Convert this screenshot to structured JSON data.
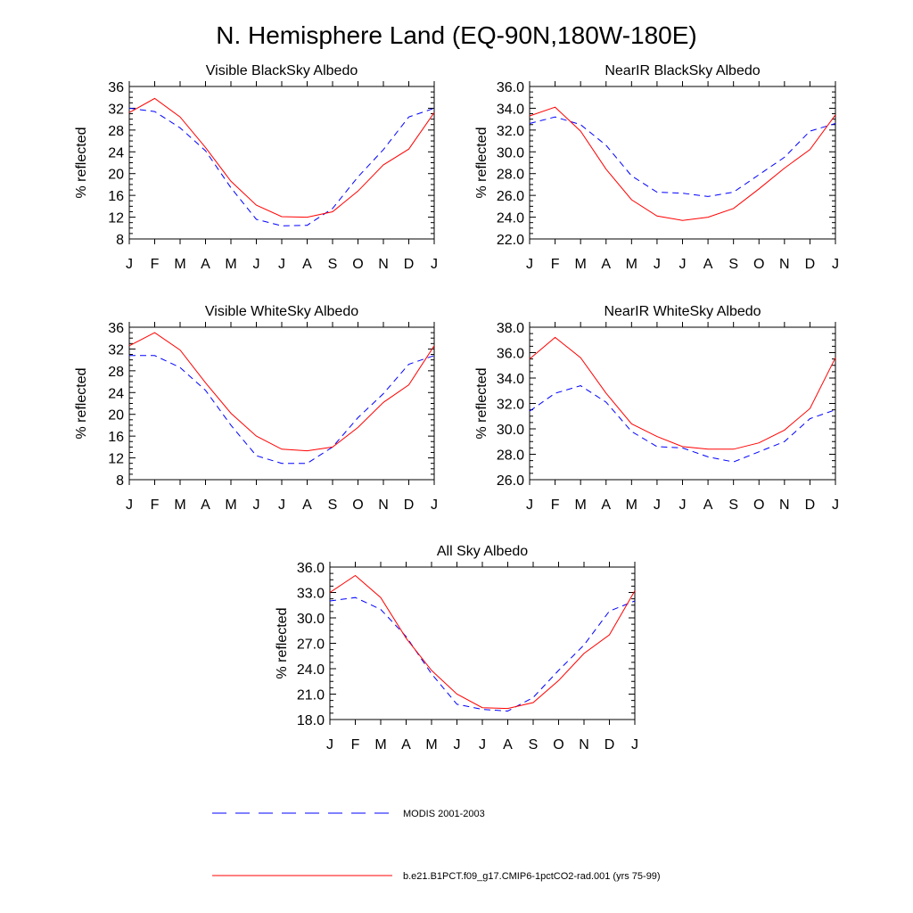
{
  "page_title": "N. Hemisphere Land (EQ-90N,180W-180E)",
  "legend": [
    {
      "label": "MODIS 2001-2003",
      "style": "dashed",
      "color": "#0000ff"
    },
    {
      "label": "b.e21.B1PCT.f09_g17.CMIP6-1pctCO2-rad.001 (yrs 75-99)",
      "style": "solid",
      "color": "#ff0000"
    }
  ],
  "chart_data": [
    {
      "type": "line",
      "title": "Visible BlackSky Albedo",
      "ylabel": "% reflected",
      "xlabel": "",
      "categories": [
        "J",
        "F",
        "M",
        "A",
        "M",
        "J",
        "J",
        "A",
        "S",
        "O",
        "N",
        "D",
        "J"
      ],
      "ylim": [
        8,
        36
      ],
      "yticks": [
        "8",
        "12",
        "16",
        "20",
        "24",
        "28",
        "32",
        "36"
      ],
      "series": [
        {
          "style": "dashed",
          "color": "#0000ff",
          "values": [
            32.0,
            31.4,
            28.4,
            24.2,
            17.4,
            11.6,
            10.4,
            10.5,
            13.6,
            19.4,
            24.4,
            30.4,
            32.0
          ]
        },
        {
          "style": "solid",
          "color": "#ff0000",
          "values": [
            31.2,
            33.8,
            30.4,
            24.8,
            18.6,
            14.2,
            12.1,
            12.0,
            13.0,
            16.8,
            21.6,
            24.5,
            31.2
          ]
        }
      ]
    },
    {
      "type": "line",
      "title": "NearIR BlackSky Albedo",
      "ylabel": "% reflected",
      "xlabel": "",
      "categories": [
        "J",
        "F",
        "M",
        "A",
        "M",
        "J",
        "J",
        "A",
        "S",
        "O",
        "N",
        "D",
        "J"
      ],
      "ylim": [
        22,
        36
      ],
      "yticks": [
        "22.0",
        "24.0",
        "26.0",
        "28.0",
        "30.0",
        "32.0",
        "34.0",
        "36.0"
      ],
      "series": [
        {
          "style": "dashed",
          "color": "#0000ff",
          "values": [
            32.6,
            33.2,
            32.5,
            30.6,
            27.8,
            26.3,
            26.2,
            25.9,
            26.3,
            27.9,
            29.5,
            31.9,
            32.6
          ]
        },
        {
          "style": "solid",
          "color": "#ff0000",
          "values": [
            33.3,
            34.1,
            31.9,
            28.4,
            25.6,
            24.1,
            23.7,
            24.0,
            24.8,
            26.6,
            28.5,
            30.2,
            33.4
          ]
        }
      ]
    },
    {
      "type": "line",
      "title": "Visible WhiteSky Albedo",
      "ylabel": "% reflected",
      "xlabel": "",
      "categories": [
        "J",
        "F",
        "M",
        "A",
        "M",
        "J",
        "J",
        "A",
        "S",
        "O",
        "N",
        "D",
        "J"
      ],
      "ylim": [
        8,
        36
      ],
      "yticks": [
        "8",
        "12",
        "16",
        "20",
        "24",
        "28",
        "32",
        "36"
      ],
      "series": [
        {
          "style": "dashed",
          "color": "#0000ff",
          "values": [
            30.8,
            30.8,
            28.6,
            24.4,
            18.0,
            12.4,
            11.0,
            11.0,
            14.0,
            19.4,
            23.8,
            29.2,
            30.8
          ]
        },
        {
          "style": "solid",
          "color": "#ff0000",
          "values": [
            32.6,
            35.0,
            31.8,
            25.8,
            20.2,
            16.0,
            13.6,
            13.3,
            14.0,
            17.6,
            22.2,
            25.4,
            32.6
          ]
        }
      ]
    },
    {
      "type": "line",
      "title": "NearIR WhiteSky Albedo",
      "ylabel": "% reflected",
      "xlabel": "",
      "categories": [
        "J",
        "F",
        "M",
        "A",
        "M",
        "J",
        "J",
        "A",
        "S",
        "O",
        "N",
        "D",
        "J"
      ],
      "ylim": [
        26,
        38
      ],
      "yticks": [
        "26.0",
        "28.0",
        "30.0",
        "32.0",
        "34.0",
        "36.0",
        "38.0"
      ],
      "series": [
        {
          "style": "dashed",
          "color": "#0000ff",
          "values": [
            31.4,
            32.8,
            33.4,
            32.1,
            29.8,
            28.6,
            28.5,
            27.8,
            27.4,
            28.2,
            29.0,
            30.8,
            31.5
          ]
        },
        {
          "style": "solid",
          "color": "#ff0000",
          "values": [
            35.5,
            37.2,
            35.6,
            32.8,
            30.4,
            29.4,
            28.6,
            28.4,
            28.4,
            28.9,
            29.9,
            31.6,
            35.6
          ]
        }
      ]
    },
    {
      "type": "line",
      "title": "All Sky Albedo",
      "ylabel": "% reflected",
      "xlabel": "",
      "categories": [
        "J",
        "F",
        "M",
        "A",
        "M",
        "J",
        "J",
        "A",
        "S",
        "O",
        "N",
        "D",
        "J"
      ],
      "ylim": [
        18,
        36
      ],
      "yticks": [
        "18.0",
        "21.0",
        "24.0",
        "27.0",
        "30.0",
        "33.0",
        "36.0"
      ],
      "series": [
        {
          "style": "dashed",
          "color": "#0000ff",
          "values": [
            32.0,
            32.4,
            31.0,
            27.8,
            23.4,
            19.8,
            19.2,
            19.0,
            20.6,
            23.8,
            26.8,
            30.8,
            32.0
          ]
        },
        {
          "style": "solid",
          "color": "#ff0000",
          "values": [
            33.0,
            35.0,
            32.4,
            27.6,
            23.8,
            21.0,
            19.4,
            19.3,
            20.0,
            22.6,
            25.8,
            28.0,
            33.2
          ]
        }
      ]
    }
  ]
}
